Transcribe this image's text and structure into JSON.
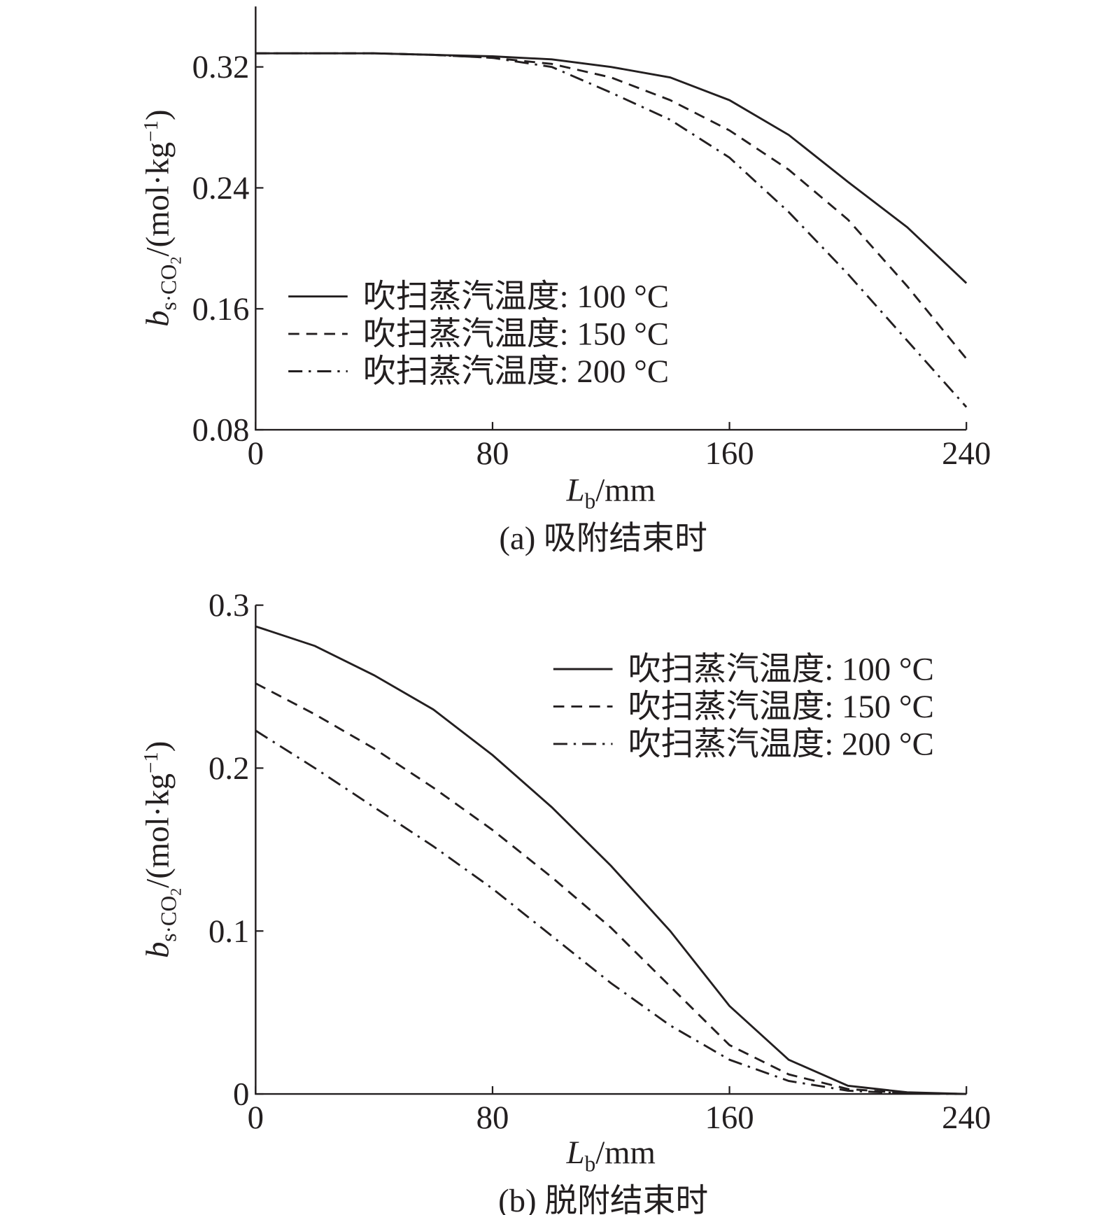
{
  "chart_data": [
    {
      "type": "line",
      "caption": "(a) 吸附结束时",
      "x_label": {
        "main": "L",
        "sub": "b",
        "rest": "/mm"
      },
      "y_label": {
        "main": "b",
        "sub": "s·CO",
        "sub2": "2",
        "rest": "/(mol·kg",
        "sup": "−1",
        "end": ")"
      },
      "x": [
        0,
        20,
        40,
        60,
        80,
        100,
        120,
        140,
        160,
        180,
        200,
        220,
        240
      ],
      "series": [
        {
          "name": "吹扫蒸汽温度: 100 °C",
          "color": "#231f20",
          "style": "solid",
          "values": [
            0.329,
            0.329,
            0.329,
            0.328,
            0.327,
            0.325,
            0.32,
            0.313,
            0.298,
            0.275,
            0.244,
            0.214,
            0.177
          ]
        },
        {
          "name": "吹扫蒸汽温度: 150 °C",
          "color": "#231f20",
          "style": "dashed",
          "values": [
            0.329,
            0.329,
            0.329,
            0.328,
            0.326,
            0.322,
            0.313,
            0.298,
            0.278,
            0.252,
            0.219,
            0.175,
            0.127
          ]
        },
        {
          "name": "吹扫蒸汽温度: 200 °C",
          "color": "#231f20",
          "style": "dashdot",
          "values": [
            0.329,
            0.329,
            0.329,
            0.328,
            0.326,
            0.32,
            0.303,
            0.285,
            0.26,
            0.224,
            0.183,
            0.139,
            0.095
          ]
        }
      ],
      "xlim": [
        0,
        240
      ],
      "xticks": [
        0,
        80,
        160,
        240
      ],
      "ylim": [
        0.08,
        0.36
      ],
      "yticks": [
        0.08,
        0.16,
        0.24,
        0.32
      ],
      "legend": "center-left"
    },
    {
      "type": "line",
      "caption": "(b) 脱附结束时",
      "x_label": {
        "main": "L",
        "sub": "b",
        "rest": "/mm"
      },
      "y_label": {
        "main": "b",
        "sub": "s·CO",
        "sub2": "2",
        "rest": "/(mol·kg",
        "sup": "−1",
        "end": ")"
      },
      "x": [
        0,
        20,
        40,
        60,
        80,
        100,
        120,
        140,
        160,
        180,
        200,
        220,
        240
      ],
      "series": [
        {
          "name": "吹扫蒸汽温度: 100 °C",
          "color": "#231f20",
          "style": "solid",
          "values": [
            0.287,
            0.275,
            0.257,
            0.236,
            0.208,
            0.176,
            0.14,
            0.1,
            0.054,
            0.021,
            0.005,
            0.001,
            0
          ]
        },
        {
          "name": "吹扫蒸汽温度: 150 °C",
          "color": "#231f20",
          "style": "dashed",
          "values": [
            0.252,
            0.233,
            0.212,
            0.188,
            0.162,
            0.133,
            0.102,
            0.066,
            0.03,
            0.012,
            0.003,
            0.0005,
            0
          ]
        },
        {
          "name": "吹扫蒸汽温度: 200 °C",
          "color": "#231f20",
          "style": "dashdot",
          "values": [
            0.223,
            0.2,
            0.176,
            0.152,
            0.126,
            0.097,
            0.068,
            0.042,
            0.021,
            0.008,
            0.002,
            0.0003,
            0
          ]
        }
      ],
      "xlim": [
        0,
        240
      ],
      "xticks": [
        0,
        80,
        160,
        240
      ],
      "ylim": [
        0,
        0.3
      ],
      "yticks": [
        0,
        0.1,
        0.2,
        0.3
      ],
      "legend": "upper-right"
    }
  ]
}
